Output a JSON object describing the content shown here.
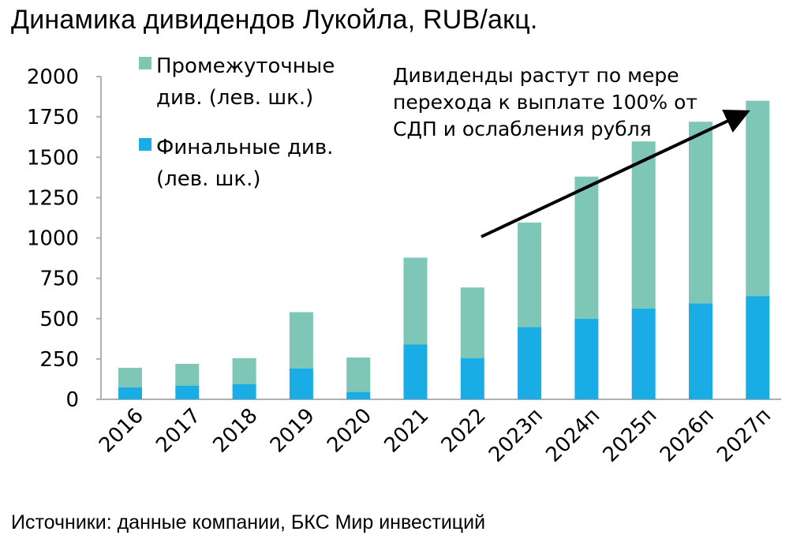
{
  "header": {
    "title": "Динамика дивидендов Лукойла, RUB/акц."
  },
  "footer": {
    "source": "Источники: данные компании, БКС Мир инвестиций"
  },
  "colors": {
    "interim": "#7ec6b6",
    "final": "#1aace4",
    "arrow": "#000000"
  },
  "chart_data": {
    "type": "bar",
    "stacked": true,
    "categories": [
      "2016",
      "2017",
      "2018",
      "2019",
      "2020",
      "2021",
      "2022",
      "2023п",
      "2024п",
      "2025п",
      "2026п",
      "2027п"
    ],
    "series": [
      {
        "name": "Финальные див. (лев. шк.)",
        "label_lines": [
          "Финальные див.",
          "(лев. шк.)"
        ],
        "color": "#1aace4",
        "values": [
          75,
          85,
          95,
          192,
          46,
          340,
          256,
          448,
          499,
          563,
          595,
          640
        ]
      },
      {
        "name": "Промежуточные див. (лев. шк.)",
        "label_lines": [
          "Промежуточные",
          "див. (лев. шк.)"
        ],
        "color": "#7ec6b6",
        "values": [
          120,
          135,
          160,
          348,
          213,
          538,
          437,
          647,
          881,
          1035,
          1125,
          1210
        ]
      }
    ],
    "yticks": [
      0,
      250,
      500,
      750,
      1000,
      1250,
      1500,
      1750,
      2000
    ],
    "ylim": [
      0,
      2000
    ],
    "annotation": {
      "text_lines": [
        "Дивиденды растут по мере",
        "перехода к выплате 100% от",
        "СДП и ослабления рубля"
      ]
    },
    "legend_position": "top-left",
    "grid": false
  }
}
